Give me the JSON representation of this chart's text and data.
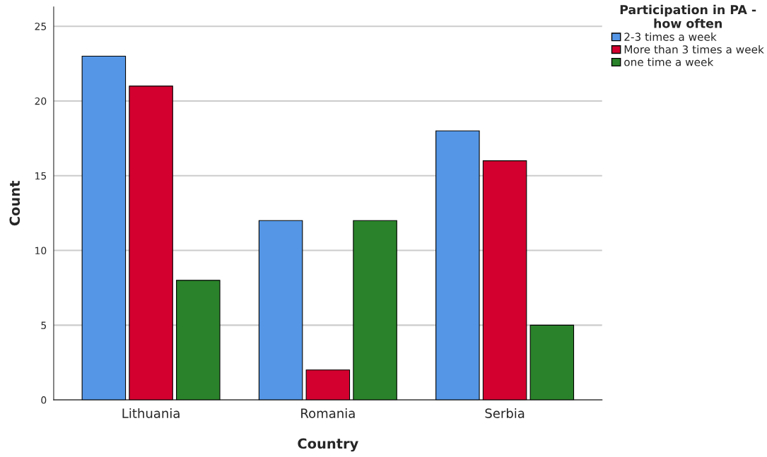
{
  "chart_data": {
    "type": "bar",
    "xlabel": "Country",
    "ylabel": "Count",
    "legend_title": "Participation in PA -\nhow often",
    "categories": [
      "Lithuania",
      "Romania",
      "Serbia"
    ],
    "series": [
      {
        "name": "2-3 times a week",
        "color": "#5596e6",
        "values": [
          23,
          12,
          18
        ]
      },
      {
        "name": "More than 3 times a week",
        "color": "#d3002f",
        "values": [
          21,
          2,
          16
        ]
      },
      {
        "name": "one time a week",
        "color": "#2a832a",
        "values": [
          8,
          12,
          5
        ]
      }
    ],
    "ylim": [
      0,
      26.3
    ],
    "yticks": [
      0,
      5,
      10,
      15,
      20,
      25
    ],
    "grid": "y",
    "legend": "top right"
  }
}
